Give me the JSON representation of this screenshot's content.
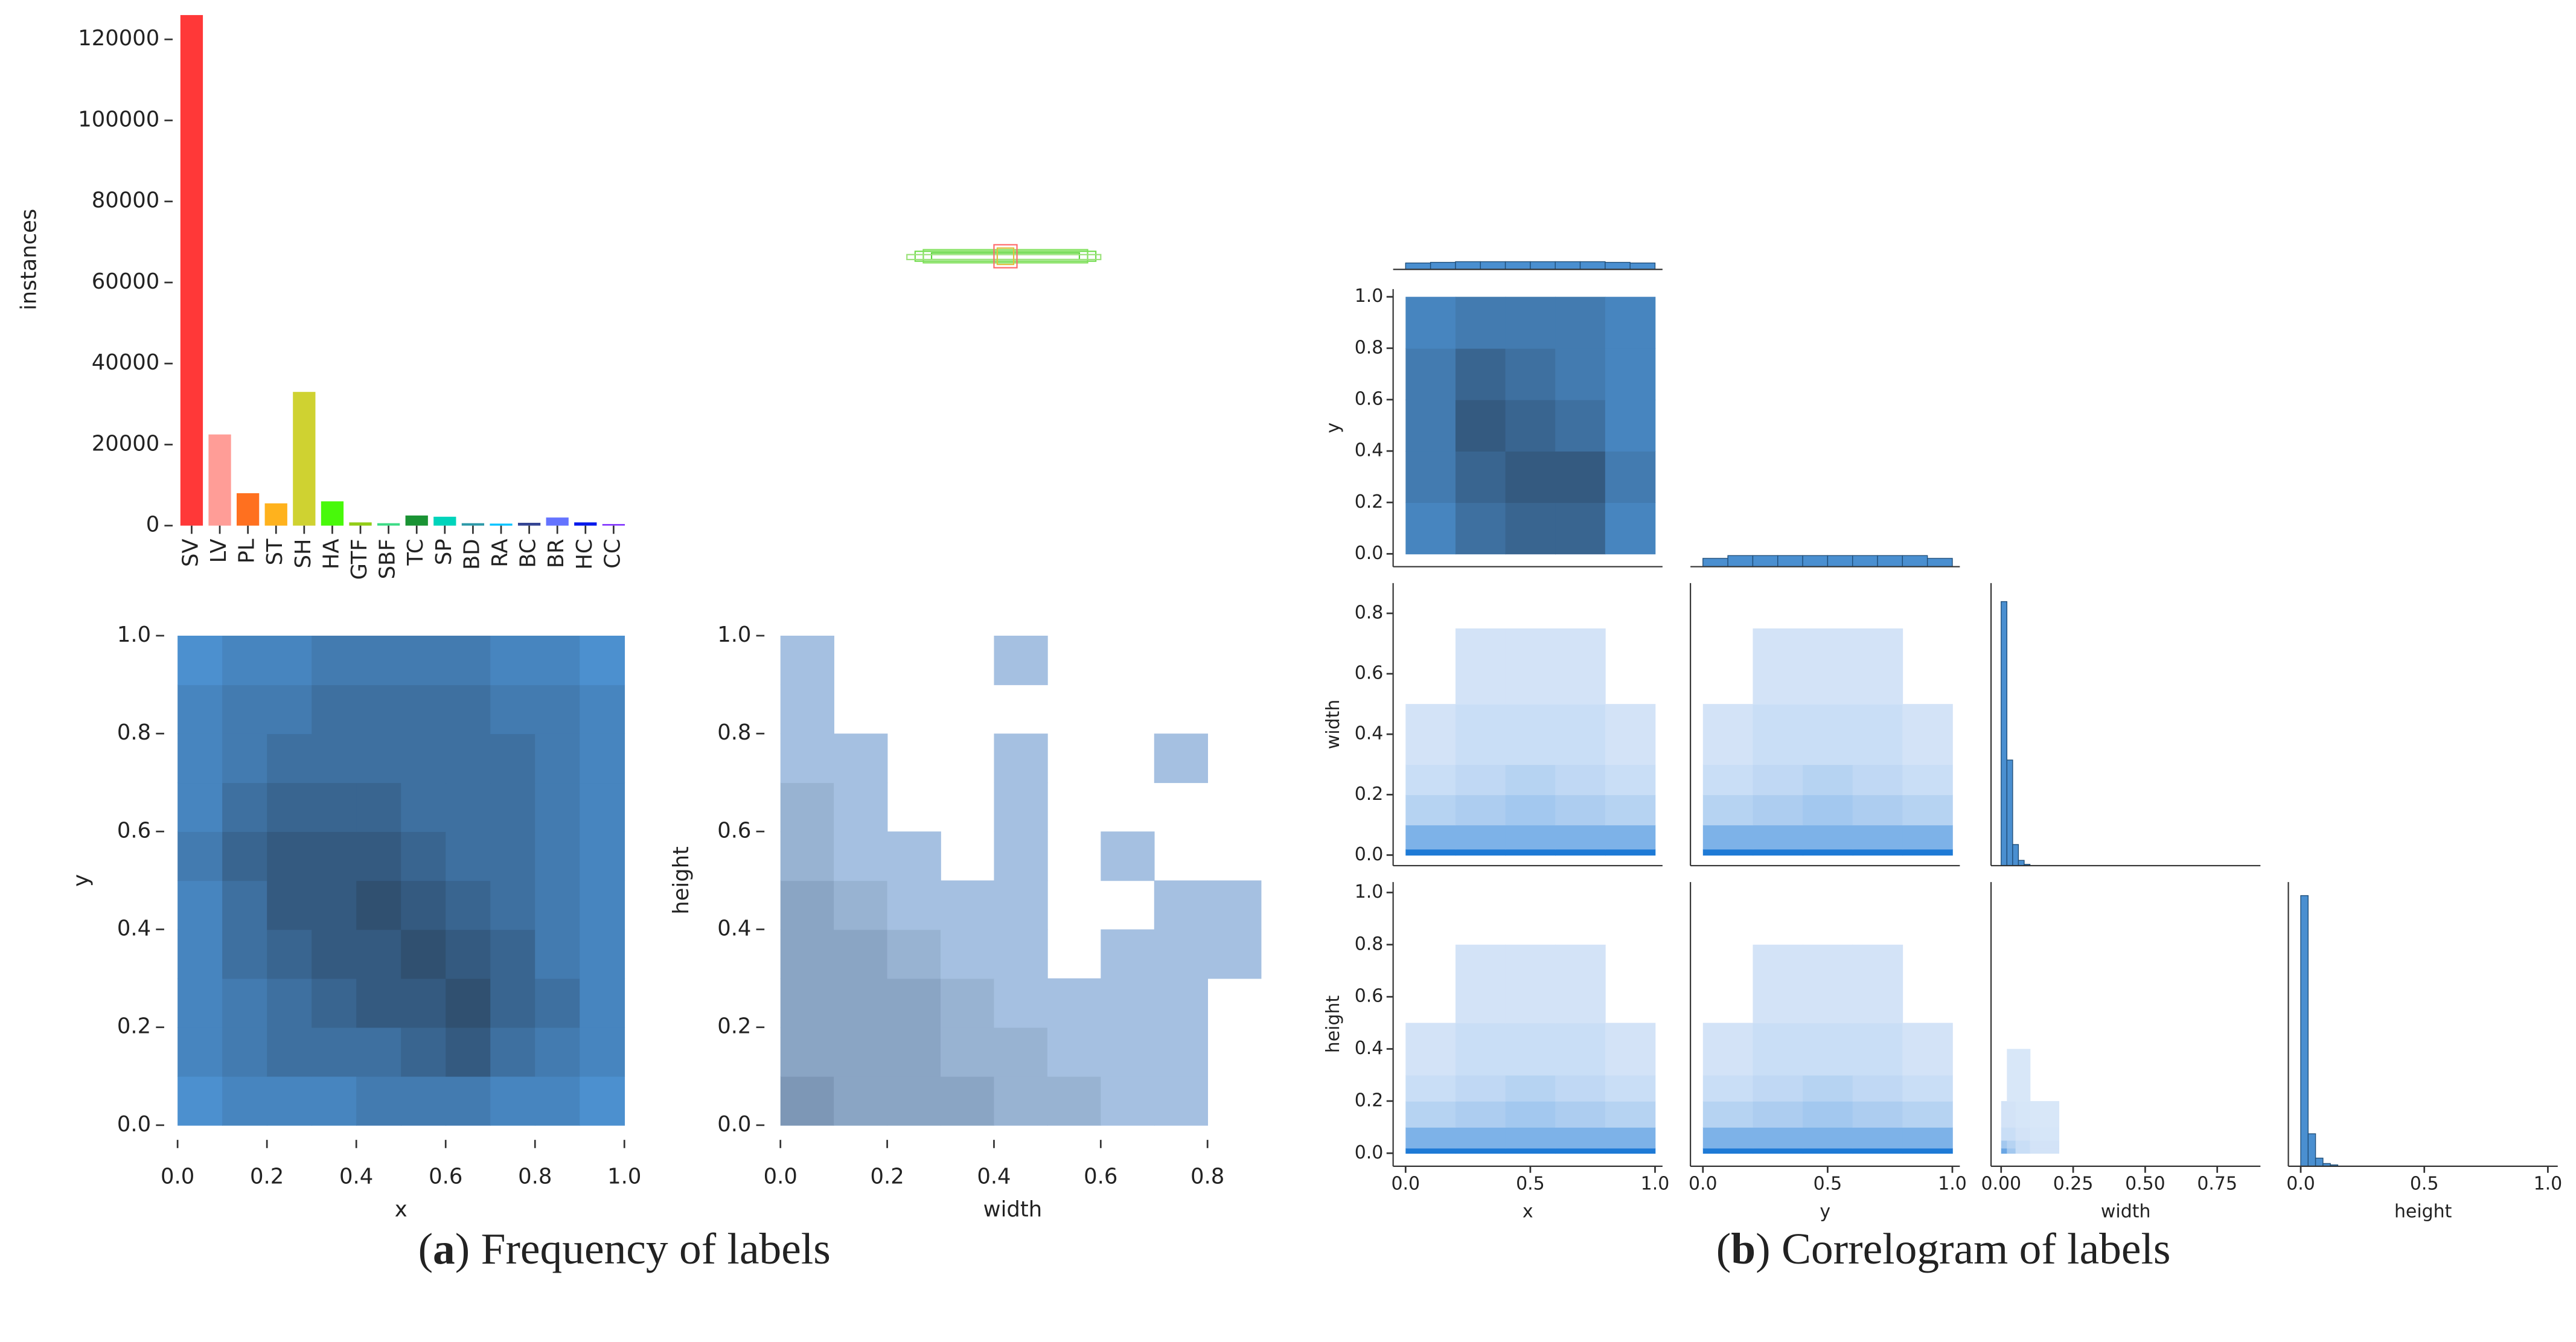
{
  "captions": [
    [
      "(",
      "a",
      ") Frequency of labels"
    ],
    [
      "(",
      "b",
      ") Correlogram of labels"
    ]
  ],
  "chart_data": [
    {
      "type": "bar",
      "ylabel": "instances",
      "categories": [
        "SV",
        "LV",
        "PL",
        "ST",
        "SH",
        "HA",
        "GTF",
        "SBF",
        "TC",
        "SP",
        "BD",
        "RA",
        "BC",
        "BR",
        "HC",
        "CC"
      ],
      "values": [
        126000,
        22500,
        8000,
        5500,
        33000,
        6000,
        800,
        600,
        2500,
        2200,
        600,
        500,
        700,
        2000,
        800,
        400
      ],
      "colors": [
        "#ff3838",
        "#ff9d97",
        "#ff701f",
        "#ffb21d",
        "#cfd231",
        "#48f90a",
        "#92cc17",
        "#3ddb86",
        "#1a9334",
        "#00d4bb",
        "#2c99a8",
        "#00c2ff",
        "#344593",
        "#6473ff",
        "#0018ec",
        "#8438ff"
      ],
      "ylim": [
        0,
        127000
      ],
      "yticks": [
        0,
        20000,
        40000,
        60000,
        80000,
        100000,
        120000
      ]
    },
    {
      "type": "heatmap",
      "xlabel": "x",
      "ylabel": "y",
      "xlim": [
        -0.03,
        1.03
      ],
      "ylim": [
        -0.03,
        1.03
      ],
      "xticks": [
        {
          "value": 0,
          "label": "0.0"
        },
        {
          "value": 0.2,
          "label": "0.2"
        },
        {
          "value": 0.4,
          "label": "0.4"
        },
        {
          "value": 0.6,
          "label": "0.6"
        },
        {
          "value": 0.8,
          "label": "0.8"
        },
        {
          "value": 1,
          "label": "1.0"
        }
      ],
      "yticks": [
        {
          "value": 0,
          "label": "0.0"
        },
        {
          "value": 0.2,
          "label": "0.2"
        },
        {
          "value": 0.4,
          "label": "0.4"
        },
        {
          "value": 0.6,
          "label": "0.6"
        },
        {
          "value": 0.8,
          "label": "0.8"
        },
        {
          "value": 1,
          "label": "1.0"
        }
      ],
      "colors": [
        "#5ab0ff",
        "#2b4560"
      ],
      "xbins": [
        0,
        0.1,
        0.2,
        0.3,
        0.4,
        0.5,
        0.6,
        0.7,
        0.8,
        0.9,
        1
      ],
      "ybins": [
        0,
        0.1,
        0.2,
        0.3,
        0.4,
        0.5,
        0.6,
        0.7,
        0.8,
        0.9,
        1
      ],
      "z": [
        [
          0.3,
          0.4,
          0.4,
          0.4,
          0.5,
          0.5,
          0.5,
          0.4,
          0.4,
          0.3
        ],
        [
          0.4,
          0.5,
          0.6,
          0.6,
          0.6,
          0.7,
          0.8,
          0.6,
          0.5,
          0.4
        ],
        [
          0.4,
          0.5,
          0.6,
          0.7,
          0.8,
          0.8,
          0.9,
          0.7,
          0.6,
          0.4
        ],
        [
          0.4,
          0.6,
          0.7,
          0.8,
          0.8,
          0.9,
          0.8,
          0.7,
          0.5,
          0.4
        ],
        [
          0.4,
          0.6,
          0.8,
          0.8,
          0.9,
          0.8,
          0.7,
          0.6,
          0.5,
          0.4
        ],
        [
          0.5,
          0.7,
          0.8,
          0.8,
          0.8,
          0.7,
          0.6,
          0.6,
          0.5,
          0.4
        ],
        [
          0.4,
          0.6,
          0.7,
          0.7,
          0.7,
          0.6,
          0.6,
          0.6,
          0.5,
          0.4
        ],
        [
          0.4,
          0.5,
          0.6,
          0.6,
          0.6,
          0.6,
          0.6,
          0.6,
          0.5,
          0.4
        ],
        [
          0.4,
          0.5,
          0.5,
          0.6,
          0.6,
          0.6,
          0.6,
          0.5,
          0.5,
          0.4
        ],
        [
          0.3,
          0.4,
          0.4,
          0.5,
          0.5,
          0.5,
          0.5,
          0.4,
          0.4,
          0.3
        ]
      ]
    },
    {
      "type": "heatmap",
      "xlabel": "width",
      "ylabel": "height",
      "xlim": [
        -0.03,
        0.9
      ],
      "ylim": [
        -0.03,
        1.03
      ],
      "xticks": [
        {
          "value": 0,
          "label": "0.0"
        },
        {
          "value": 0.2,
          "label": "0.2"
        },
        {
          "value": 0.4,
          "label": "0.4"
        },
        {
          "value": 0.6,
          "label": "0.6"
        },
        {
          "value": 0.8,
          "label": "0.8"
        }
      ],
      "yticks": [
        {
          "value": 0,
          "label": "0.0"
        },
        {
          "value": 0.2,
          "label": "0.2"
        },
        {
          "value": 0.4,
          "label": "0.4"
        },
        {
          "value": 0.6,
          "label": "0.6"
        },
        {
          "value": 0.8,
          "label": "0.8"
        },
        {
          "value": 1,
          "label": "1.0"
        }
      ],
      "colors": [
        "#b3ceef",
        "#2b4560"
      ],
      "xbins": [
        0,
        0.1,
        0.2,
        0.3,
        0.4,
        0.5,
        0.6,
        0.7,
        0.8,
        0.9
      ],
      "ybins": [
        0,
        0.1,
        0.2,
        0.3,
        0.4,
        0.5,
        0.6,
        0.7,
        0.8,
        0.9,
        1
      ],
      "z": [
        [
          0.4,
          0.3,
          0.3,
          0.3,
          0.2,
          0.2,
          0.1,
          0.1,
          0
        ],
        [
          0.3,
          0.3,
          0.3,
          0.2,
          0.2,
          0.1,
          0.1,
          0.1,
          0
        ],
        [
          0.3,
          0.3,
          0.3,
          0.2,
          0.1,
          0.1,
          0.1,
          0.1,
          0
        ],
        [
          0.3,
          0.3,
          0.2,
          0.1,
          0.1,
          0,
          0.1,
          0.1,
          0.1
        ],
        [
          0.3,
          0.2,
          0.1,
          0.1,
          0.1,
          0,
          0,
          0.1,
          0.1
        ],
        [
          0.2,
          0.1,
          0.1,
          0,
          0.1,
          0,
          0.1,
          0,
          0
        ],
        [
          0.2,
          0.1,
          0,
          0,
          0.1,
          0,
          0,
          0,
          0
        ],
        [
          0.1,
          0.1,
          0,
          0,
          0.1,
          0,
          0,
          0.1,
          0
        ],
        [
          0.1,
          0,
          0,
          0,
          0,
          0,
          0,
          0,
          0
        ],
        [
          0.1,
          0,
          0,
          0,
          0.1,
          0,
          0,
          0,
          0
        ]
      ]
    },
    {
      "type": "pairgrid",
      "variables": [
        {
          "name": "x",
          "lim": [
            -0.05,
            1.03
          ],
          "xticks": [
            {
              "value": 0,
              "label": "0.0"
            },
            {
              "value": 0.5,
              "label": "0.5"
            },
            {
              "value": 1,
              "label": "1.0"
            }
          ]
        },
        {
          "name": "y",
          "lim": [
            -0.05,
            1.03
          ],
          "xticks": [
            {
              "value": 0,
              "label": "0.0"
            },
            {
              "value": 0.5,
              "label": "0.5"
            },
            {
              "value": 1,
              "label": "1.0"
            }
          ],
          "yticks": [
            {
              "value": 0,
              "label": "0.0"
            },
            {
              "value": 0.2,
              "label": "0.2"
            },
            {
              "value": 0.4,
              "label": "0.4"
            },
            {
              "value": 0.6,
              "label": "0.6"
            },
            {
              "value": 0.8,
              "label": "0.8"
            },
            {
              "value": 1,
              "label": "1.0"
            }
          ]
        },
        {
          "name": "width",
          "lim": [
            -0.035,
            0.9
          ],
          "xticks": [
            {
              "value": 0,
              "label": "0.00"
            },
            {
              "value": 0.25,
              "label": "0.25"
            },
            {
              "value": 0.5,
              "label": "0.50"
            },
            {
              "value": 0.75,
              "label": "0.75"
            }
          ],
          "yticks": [
            {
              "value": 0,
              "label": "0.0"
            },
            {
              "value": 0.2,
              "label": "0.2"
            },
            {
              "value": 0.4,
              "label": "0.4"
            },
            {
              "value": 0.6,
              "label": "0.6"
            },
            {
              "value": 0.8,
              "label": "0.8"
            }
          ]
        },
        {
          "name": "height",
          "lim": [
            -0.05,
            1.04
          ],
          "xticks": [
            {
              "value": 0,
              "label": "0.0"
            },
            {
              "value": 0.5,
              "label": "0.5"
            },
            {
              "value": 1,
              "label": "1.0"
            }
          ],
          "yticks": [
            {
              "value": 0,
              "label": "0.0"
            },
            {
              "value": 0.2,
              "label": "0.2"
            },
            {
              "value": 0.4,
              "label": "0.4"
            },
            {
              "value": 0.6,
              "label": "0.6"
            },
            {
              "value": 0.8,
              "label": "0.8"
            },
            {
              "value": 1,
              "label": "1.0"
            }
          ]
        }
      ],
      "diagonal": [
        {
          "bins": [
            0,
            0.1,
            0.2,
            0.3,
            0.4,
            0.5,
            0.6,
            0.7,
            0.8,
            0.9,
            1
          ],
          "counts": [
            10,
            11,
            12,
            12,
            12,
            12,
            12,
            12,
            11,
            10
          ],
          "ylim": [
            0,
            100
          ]
        },
        {
          "bins": [
            0,
            0.1,
            0.2,
            0.3,
            0.4,
            0.5,
            0.6,
            0.7,
            0.8,
            0.9,
            1
          ],
          "counts": [
            3,
            4,
            4,
            4,
            4,
            4,
            4,
            4,
            4,
            3
          ],
          "ylim": [
            0,
            100
          ]
        },
        {
          "bins": [
            0,
            0.02,
            0.04,
            0.06,
            0.08,
            0.1
          ],
          "counts": [
            100,
            40,
            8,
            2,
            0.5
          ],
          "ylim": [
            0,
            107
          ]
        },
        {
          "bins": [
            0,
            0.03,
            0.06,
            0.09,
            0.12,
            0.15
          ],
          "counts": [
            100,
            12,
            3,
            1,
            0.5
          ],
          "ylim": [
            0,
            105
          ]
        }
      ],
      "panels": [
        {
          "row": 1,
          "col": 0,
          "colors": [
            "#5ab0ff",
            "#2b4560"
          ],
          "xbins": [
            0,
            0.2,
            0.4,
            0.6,
            0.8,
            1
          ],
          "ybins": [
            0,
            0.2,
            0.4,
            0.6,
            0.8,
            1
          ],
          "z": [
            [
              0.4,
              0.6,
              0.7,
              0.7,
              0.4
            ],
            [
              0.5,
              0.7,
              0.8,
              0.8,
              0.5
            ],
            [
              0.5,
              0.8,
              0.7,
              0.6,
              0.4
            ],
            [
              0.5,
              0.7,
              0.6,
              0.5,
              0.4
            ],
            [
              0.4,
              0.5,
              0.5,
              0.5,
              0.4
            ]
          ]
        },
        {
          "row": 2,
          "col": 0,
          "colors": [
            "#dce9f9",
            "#1e7ad6"
          ],
          "xbins": [
            0,
            0.2,
            0.4,
            0.6,
            0.8,
            1
          ],
          "ybins": [
            0,
            0.02,
            0.1,
            0.2,
            0.3,
            0.5,
            0.75
          ],
          "z": [
            [
              1,
              1,
              1,
              1,
              1
            ],
            [
              0.5,
              0.5,
              0.5,
              0.5,
              0.5
            ],
            [
              0.2,
              0.25,
              0.3,
              0.25,
              0.2
            ],
            [
              0.1,
              0.15,
              0.2,
              0.15,
              0.1
            ],
            [
              0.05,
              0.1,
              0.1,
              0.1,
              0.05
            ],
            [
              0,
              0.05,
              0.05,
              0.05,
              0
            ]
          ]
        },
        {
          "row": 2,
          "col": 1,
          "colors": [
            "#dce9f9",
            "#1e7ad6"
          ],
          "xbins": [
            0,
            0.2,
            0.4,
            0.6,
            0.8,
            1
          ],
          "ybins": [
            0,
            0.02,
            0.1,
            0.2,
            0.3,
            0.5,
            0.75
          ],
          "z": [
            [
              1,
              1,
              1,
              1,
              1
            ],
            [
              0.5,
              0.5,
              0.5,
              0.5,
              0.5
            ],
            [
              0.2,
              0.25,
              0.3,
              0.25,
              0.2
            ],
            [
              0.1,
              0.15,
              0.2,
              0.15,
              0.1
            ],
            [
              0.05,
              0.1,
              0.1,
              0.1,
              0.05
            ],
            [
              0,
              0.05,
              0.05,
              0.05,
              0
            ]
          ]
        },
        {
          "row": 3,
          "col": 0,
          "colors": [
            "#dce9f9",
            "#1e7ad6"
          ],
          "xbins": [
            0,
            0.2,
            0.4,
            0.6,
            0.8,
            1
          ],
          "ybins": [
            0,
            0.02,
            0.1,
            0.2,
            0.3,
            0.5,
            0.8
          ],
          "z": [
            [
              1,
              1,
              1,
              1,
              1
            ],
            [
              0.5,
              0.5,
              0.5,
              0.5,
              0.5
            ],
            [
              0.2,
              0.25,
              0.3,
              0.25,
              0.2
            ],
            [
              0.1,
              0.15,
              0.2,
              0.15,
              0.1
            ],
            [
              0.05,
              0.1,
              0.1,
              0.1,
              0.05
            ],
            [
              0,
              0.05,
              0.05,
              0.05,
              0
            ]
          ]
        },
        {
          "row": 3,
          "col": 1,
          "colors": [
            "#dce9f9",
            "#1e7ad6"
          ],
          "xbins": [
            0,
            0.2,
            0.4,
            0.6,
            0.8,
            1
          ],
          "ybins": [
            0,
            0.02,
            0.1,
            0.2,
            0.3,
            0.5,
            0.8
          ],
          "z": [
            [
              1,
              1,
              1,
              1,
              1
            ],
            [
              0.5,
              0.5,
              0.5,
              0.5,
              0.5
            ],
            [
              0.2,
              0.25,
              0.3,
              0.25,
              0.2
            ],
            [
              0.1,
              0.15,
              0.2,
              0.15,
              0.1
            ],
            [
              0.05,
              0.1,
              0.1,
              0.1,
              0.05
            ],
            [
              0,
              0.05,
              0.05,
              0.05,
              0
            ]
          ]
        },
        {
          "row": 3,
          "col": 2,
          "colors": [
            "#dce9f9",
            "#1e7ad6"
          ],
          "xbins": [
            0,
            0.02,
            0.05,
            0.1,
            0.2,
            0.4
          ],
          "ybins": [
            0,
            0.02,
            0.05,
            0.1,
            0.2,
            0.4
          ],
          "z": [
            [
              0.6,
              0.3,
              0.1,
              0.05,
              0
            ],
            [
              0.3,
              0.2,
              0.1,
              0.05,
              0
            ],
            [
              0.1,
              0.1,
              0.05,
              0.03,
              0
            ],
            [
              0.05,
              0.05,
              0.03,
              0.02,
              0
            ],
            [
              0,
              0.02,
              0.02,
              0,
              0
            ]
          ]
        }
      ]
    }
  ]
}
